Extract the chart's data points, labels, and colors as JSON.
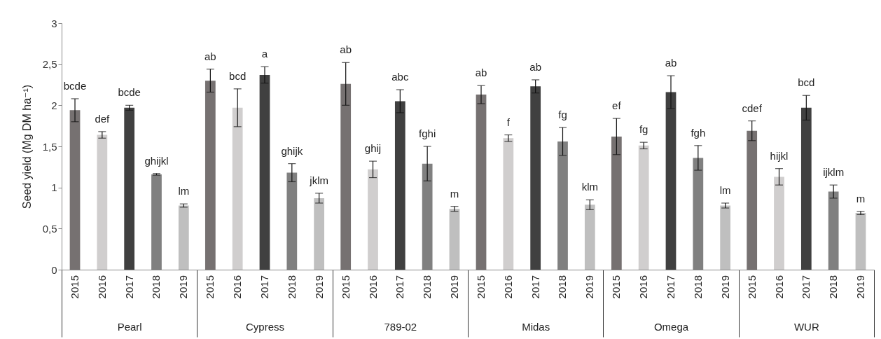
{
  "chart_data": {
    "type": "bar",
    "ylabel": "Seed yield (Mg DM ha⁻¹)",
    "categories": [
      "Pearl",
      "Cypress",
      "789-02",
      "Midas",
      "Omega",
      "WUR"
    ],
    "ylim": [
      0,
      3
    ],
    "yticks": [
      0,
      {
        "value": 0.5,
        "label": "0,5"
      },
      1,
      {
        "value": 1.5,
        "label": "1,5"
      },
      2,
      {
        "value": 2.5,
        "label": "2,5"
      },
      3
    ],
    "grid": false,
    "legend": false,
    "series": [
      {
        "name": "2015",
        "color": "#767171",
        "values": [
          1.94,
          2.3,
          2.26,
          2.13,
          1.62,
          1.69
        ],
        "errors": [
          0.14,
          0.14,
          0.26,
          0.11,
          0.22,
          0.12
        ],
        "value_labels": [
          "bcde",
          "ab",
          "ab",
          "ab",
          "ef",
          "cdef"
        ]
      },
      {
        "name": "2016",
        "color": "#d0cece",
        "values": [
          1.64,
          1.97,
          1.22,
          1.6,
          1.51,
          1.13
        ],
        "errors": [
          0.04,
          0.23,
          0.1,
          0.04,
          0.04,
          0.1
        ],
        "value_labels": [
          "def",
          "bcd",
          "ghij",
          "f",
          "fg",
          "hijkl"
        ]
      },
      {
        "name": "2017",
        "color": "#404040",
        "values": [
          1.97,
          2.37,
          2.05,
          2.23,
          2.16,
          1.97
        ],
        "errors": [
          0.03,
          0.1,
          0.14,
          0.08,
          0.2,
          0.15
        ],
        "value_labels": [
          "bcde",
          "a",
          "abc",
          "ab",
          "ab",
          "bcd"
        ]
      },
      {
        "name": "2018",
        "color": "#808080",
        "values": [
          1.16,
          1.18,
          1.29,
          1.56,
          1.36,
          0.95
        ],
        "errors": [
          0.01,
          0.11,
          0.21,
          0.17,
          0.15,
          0.08
        ],
        "value_labels": [
          "ghijkl",
          "ghijk",
          "fghi",
          "fg",
          "fgh",
          "ijklm"
        ]
      },
      {
        "name": "2019",
        "color": "#bfbfbf",
        "values": [
          0.78,
          0.87,
          0.74,
          0.79,
          0.78,
          0.69
        ],
        "errors": [
          0.02,
          0.06,
          0.03,
          0.06,
          0.03,
          0.02
        ],
        "value_labels": [
          "lm",
          "jklm",
          "m",
          "klm",
          "lm",
          "m"
        ]
      }
    ]
  }
}
